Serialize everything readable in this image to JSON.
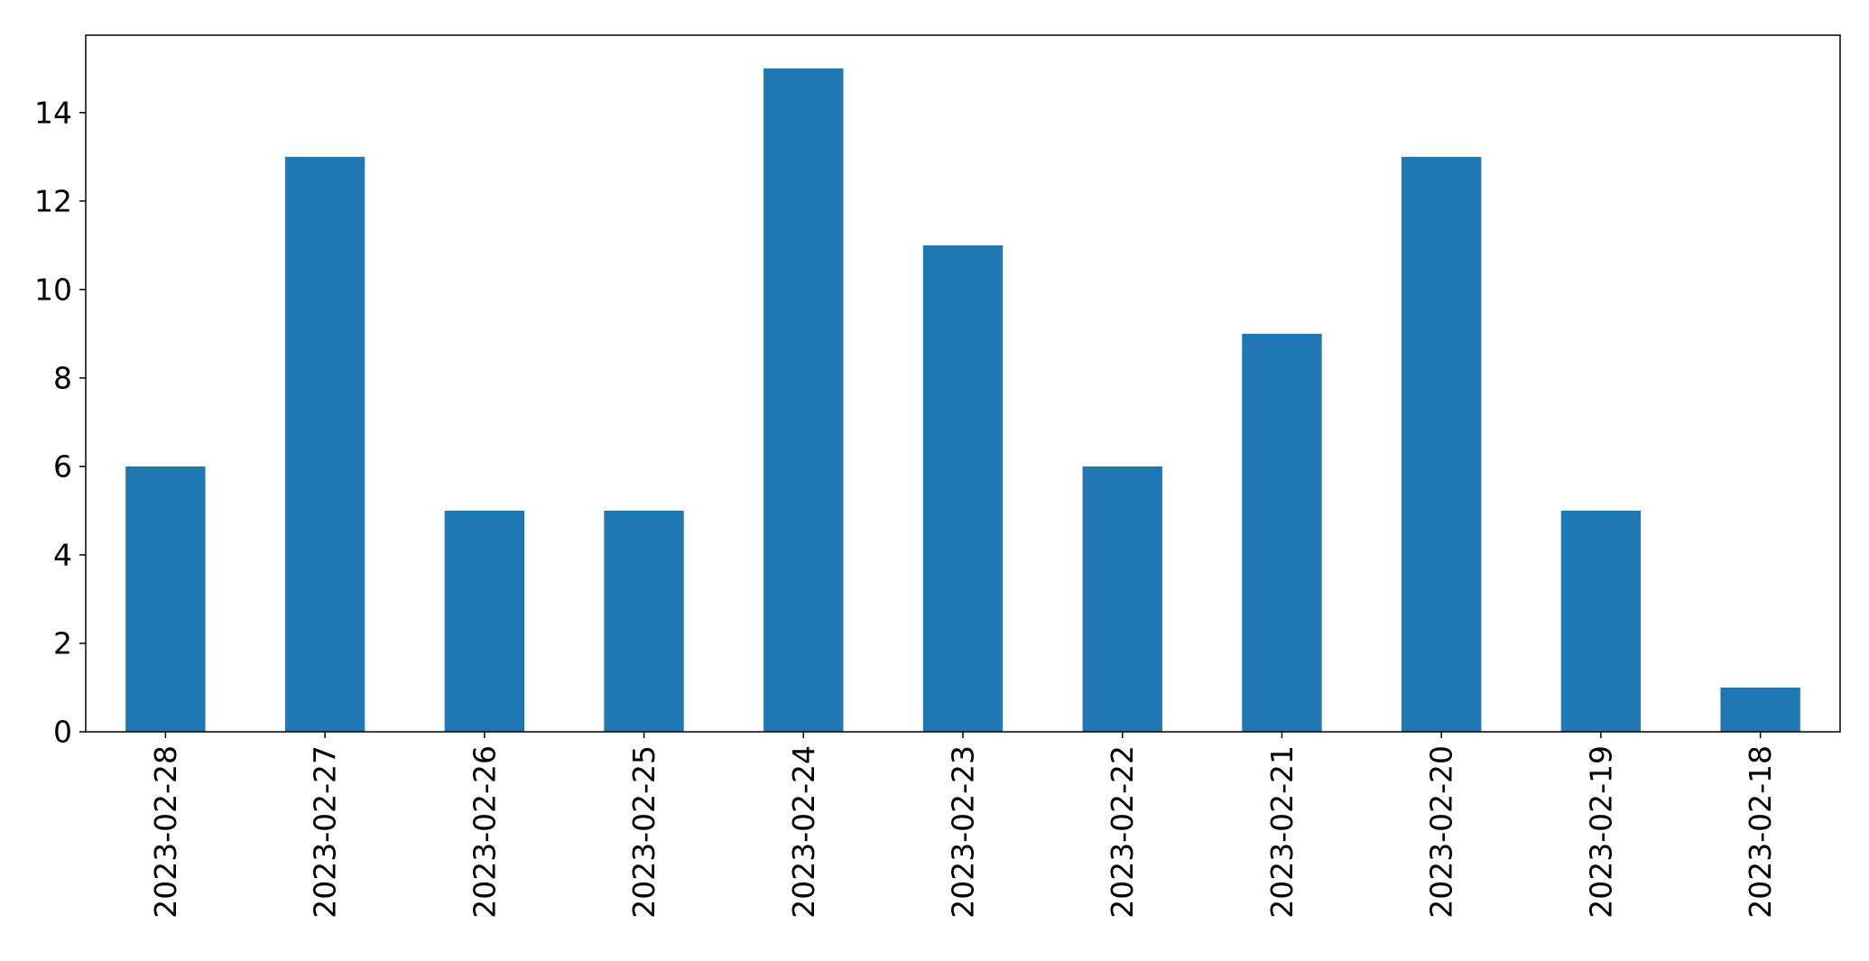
{
  "chart_data": {
    "type": "bar",
    "categories": [
      "2023-02-28",
      "2023-02-27",
      "2023-02-26",
      "2023-02-25",
      "2023-02-24",
      "2023-02-23",
      "2023-02-22",
      "2023-02-21",
      "2023-02-20",
      "2023-02-19",
      "2023-02-18"
    ],
    "values": [
      6,
      13,
      5,
      5,
      15,
      11,
      6,
      9,
      13,
      5,
      1
    ],
    "yticks": [
      0,
      2,
      4,
      6,
      8,
      10,
      12,
      14
    ],
    "ylim": [
      0,
      15.75
    ],
    "grid": false,
    "legend": "none",
    "title": "",
    "xlabel": "",
    "ylabel": "",
    "colors": {
      "bar": "#1f77b4",
      "axis": "#000000"
    }
  }
}
